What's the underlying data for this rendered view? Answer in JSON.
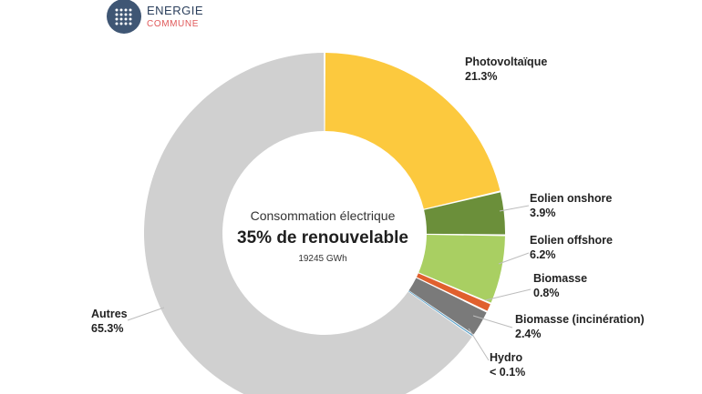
{
  "brand": {
    "line1": "ENERGIE",
    "line2": "COMMUNE"
  },
  "chart_data": {
    "type": "pie",
    "center": {
      "subtitle": "Consommation électrique",
      "headline": "35% de renouvelable",
      "total": "19245 GWh"
    },
    "slices": [
      {
        "name": "Photovoltaïque",
        "value": 21.3,
        "label": "21.3%",
        "color": "#fcc93e"
      },
      {
        "name": "Eolien onshore",
        "value": 3.9,
        "label": "3.9%",
        "color": "#6b8f3a"
      },
      {
        "name": "Eolien offshore",
        "value": 6.2,
        "label": "6.2%",
        "color": "#a9cf62"
      },
      {
        "name": "Biomasse",
        "value": 0.8,
        "label": "0.8%",
        "color": "#e0602e"
      },
      {
        "name": "Biomasse (incinération)",
        "value": 2.4,
        "label": "2.4%",
        "color": "#7a7a7a"
      },
      {
        "name": "Hydro",
        "value": 0.1,
        "label": "< 0.1%",
        "color": "#5aa0c8"
      },
      {
        "name": "Autres",
        "value": 65.3,
        "label": "65.3%",
        "color": "#d0d0d0"
      }
    ]
  }
}
